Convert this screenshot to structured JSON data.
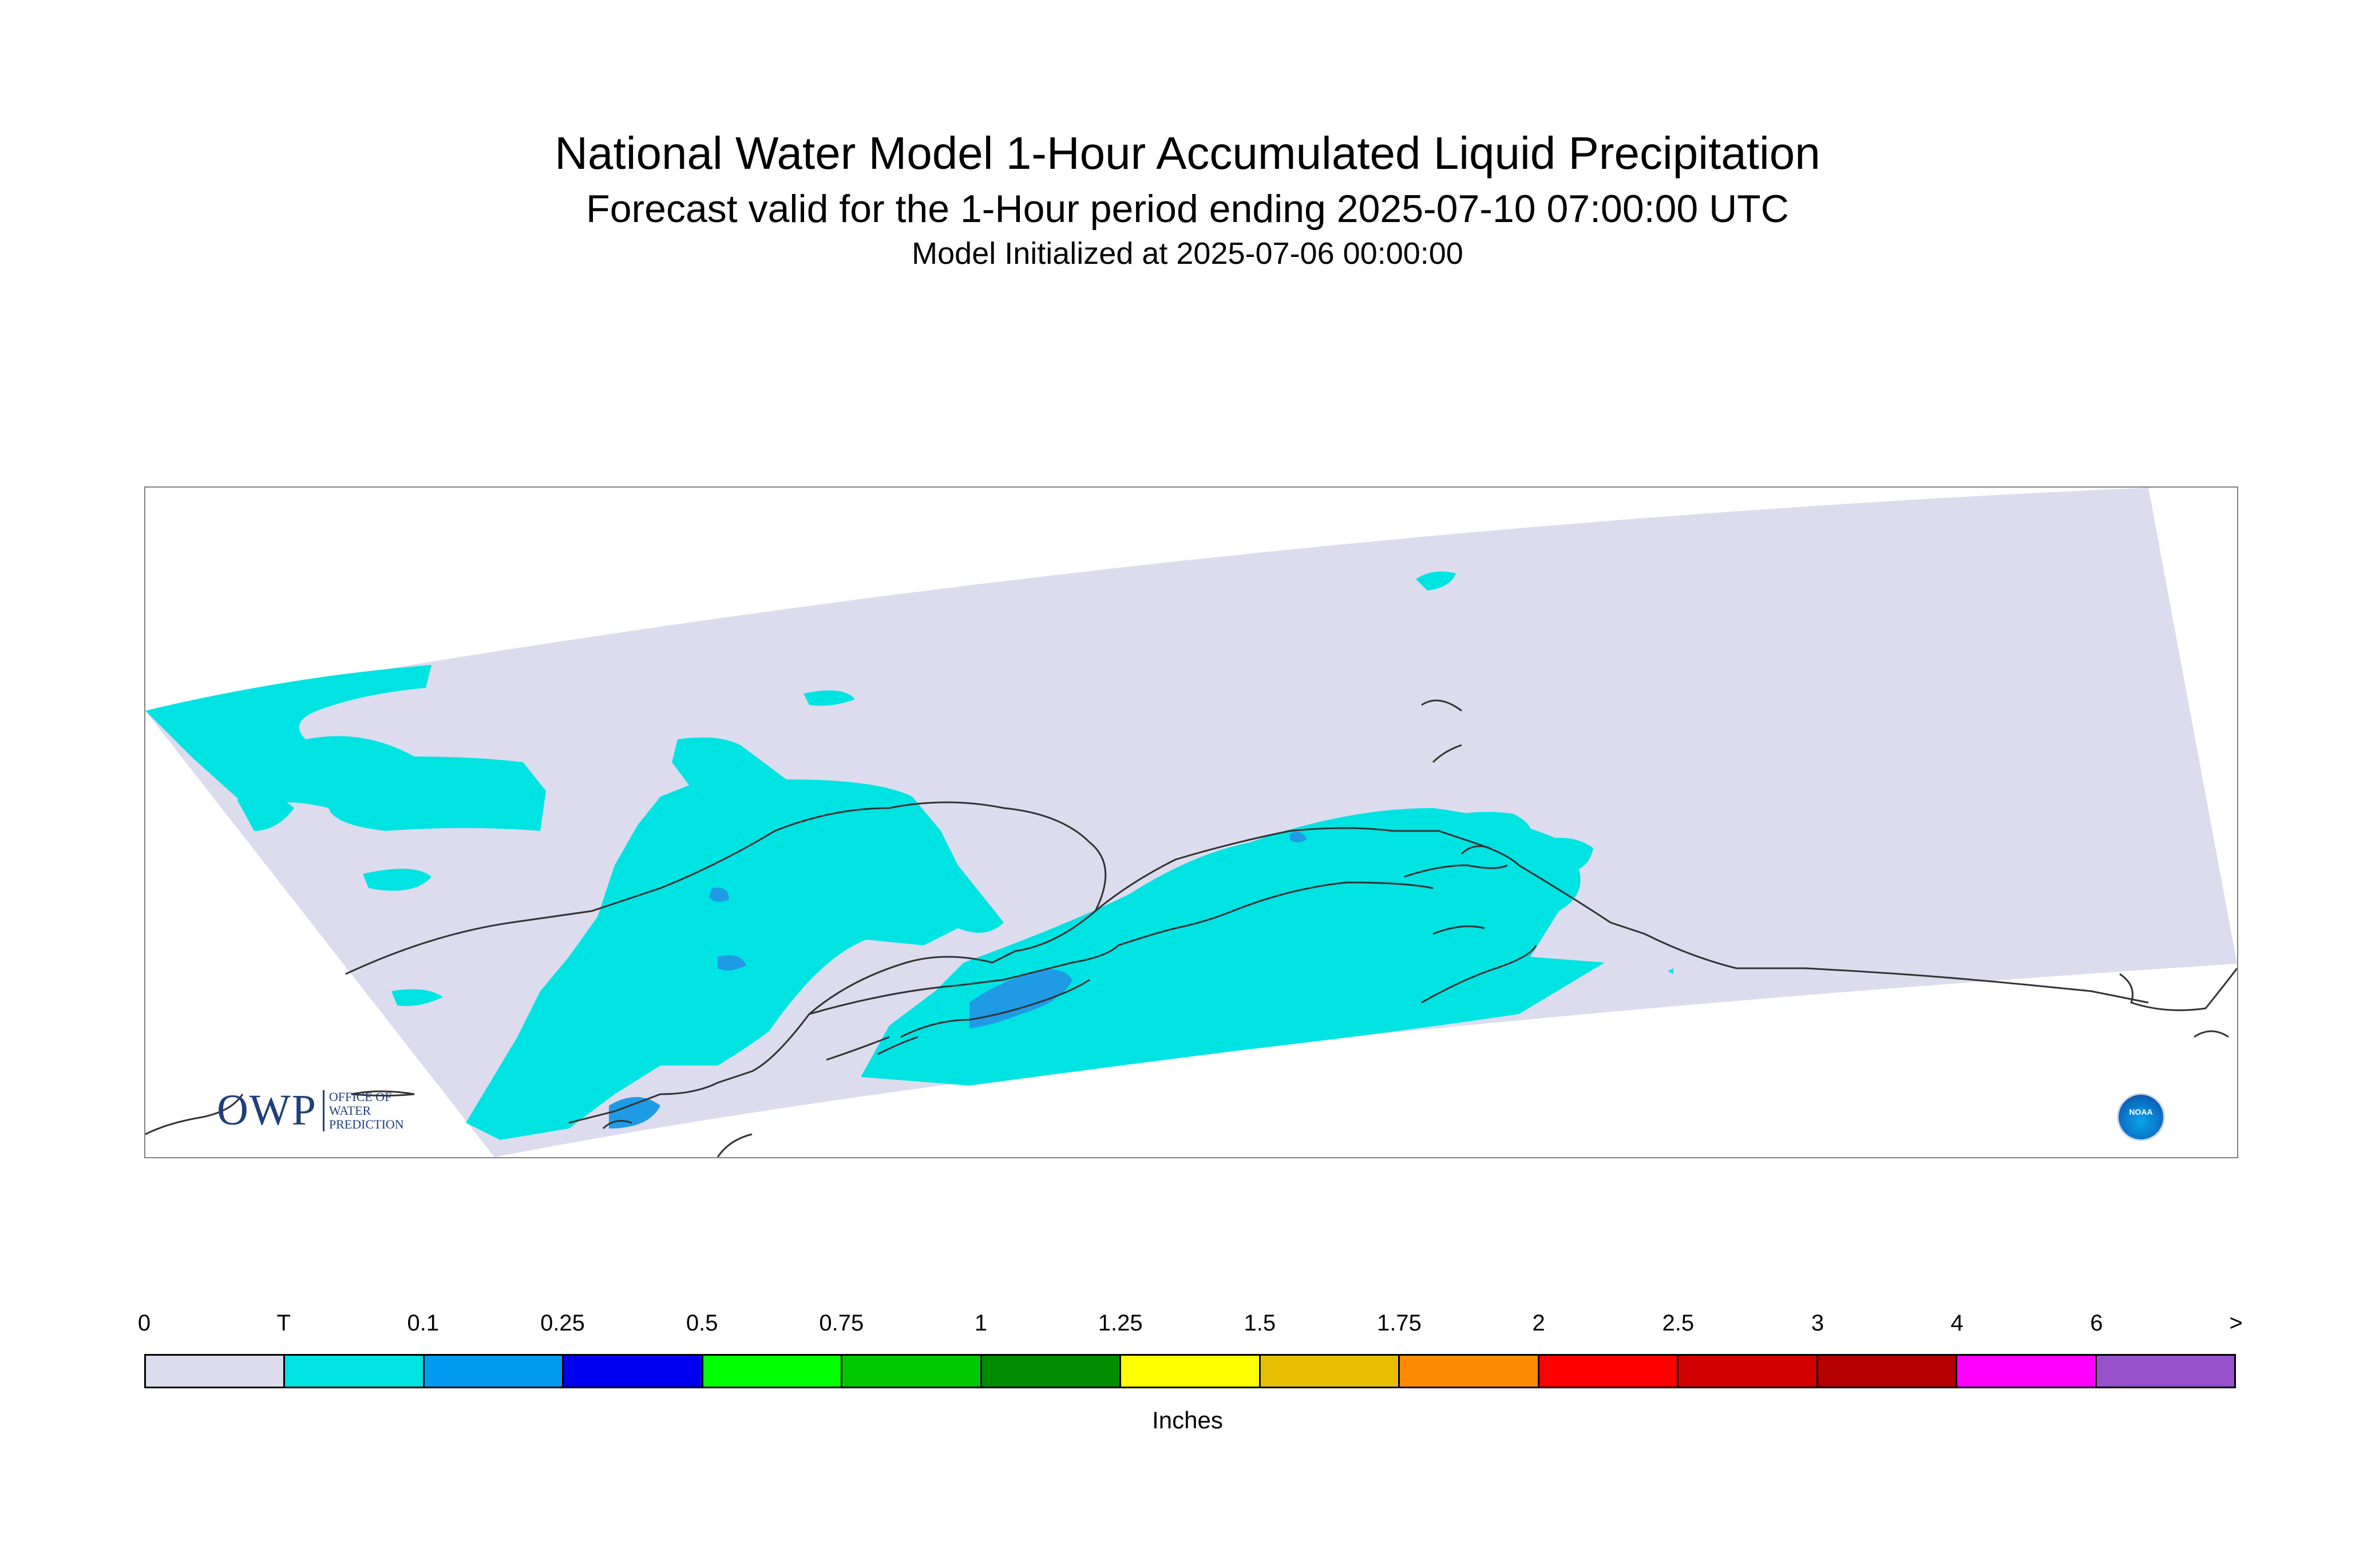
{
  "title": "National Water Model 1-Hour Accumulated Liquid Precipitation",
  "subtitle": "Forecast valid for the 1-Hour period ending 2025-07-10 07:00:00 UTC",
  "init_line": "Model Initialized at 2025-07-06 00:00:00",
  "logos": {
    "owp_mark": "OWP",
    "owp_sub": [
      "OFFICE OF",
      "WATER",
      "PREDICTION"
    ],
    "noaa": "NOAA"
  },
  "legend": {
    "ticks": [
      "0",
      "T",
      "0.1",
      "0.25",
      "0.5",
      "0.75",
      "1",
      "1.25",
      "1.5",
      "1.75",
      "2",
      "2.5",
      "3",
      "4",
      "6",
      ">"
    ],
    "colors": [
      "#dcdcee",
      "#00e3e3",
      "#009bf0",
      "#0000f0",
      "#00ff00",
      "#00c800",
      "#008c00",
      "#ffff00",
      "#e6be00",
      "#ff8c00",
      "#ff0000",
      "#d20000",
      "#b40000",
      "#ff00ff",
      "#9650c8"
    ],
    "units": "Inches"
  },
  "map_colors": {
    "domain": "#dcdcee",
    "trace": "#00e3e3",
    "light": "#1f9be6",
    "coast": "#333333"
  }
}
